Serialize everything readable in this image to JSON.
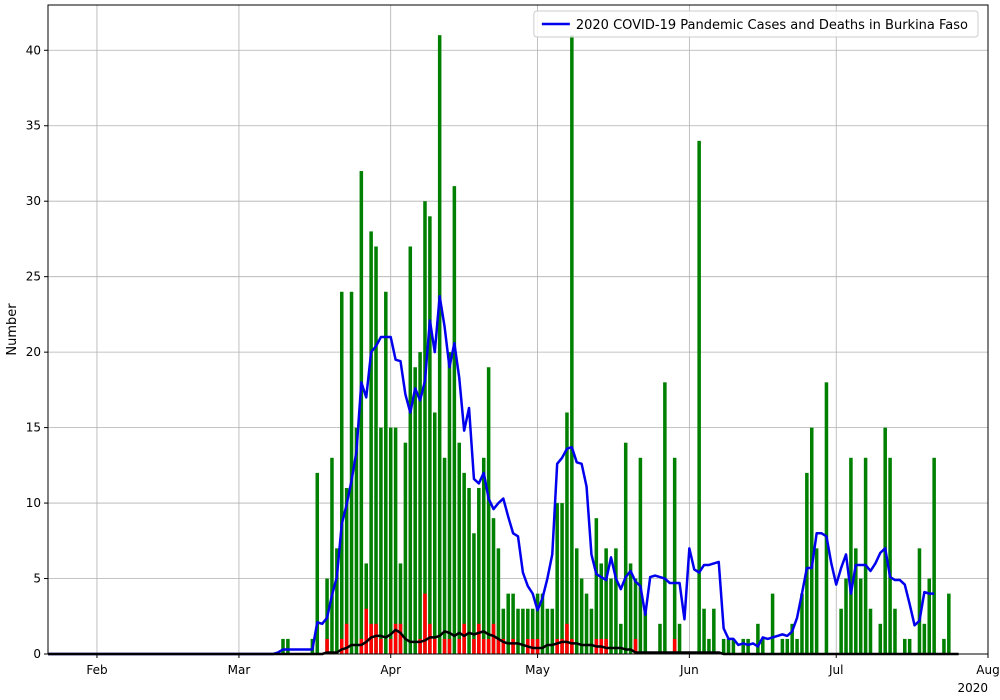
{
  "chart_data": {
    "type": "bar",
    "title": "",
    "xlabel": "",
    "ylabel": "Number",
    "x_offset_label": "2020",
    "x_range": [
      "2020-01-22",
      "2020-08-01"
    ],
    "ylim": [
      0,
      43
    ],
    "y_ticks": [
      0,
      5,
      10,
      15,
      20,
      25,
      30,
      35,
      40
    ],
    "x_ticks": [
      {
        "date": "2020-02-01",
        "label": "Feb"
      },
      {
        "date": "2020-03-01",
        "label": "Mar"
      },
      {
        "date": "2020-04-01",
        "label": "Apr"
      },
      {
        "date": "2020-05-01",
        "label": "May"
      },
      {
        "date": "2020-06-01",
        "label": "Jun"
      },
      {
        "date": "2020-07-01",
        "label": "Jul"
      },
      {
        "date": "2020-08-01",
        "label": "Aug"
      }
    ],
    "grid": true,
    "legend_position": "top-right",
    "legend_entries": [
      "2020 COVID-19 Pandemic Cases and Deaths in Burkina Faso"
    ],
    "start_date": "2020-01-22",
    "colors": {
      "cases_bar": "#008000",
      "deaths_bar": "#ff0000",
      "cases_avg": "#0000ee",
      "deaths_avg": "#000000",
      "grid": "#b0b0b0"
    },
    "series": [
      {
        "kind": "bar",
        "color": "#008000",
        "values": [
          0,
          0,
          0,
          0,
          0,
          0,
          0,
          0,
          0,
          0,
          0,
          0,
          0,
          0,
          0,
          0,
          0,
          0,
          0,
          0,
          0,
          0,
          0,
          0,
          0,
          0,
          0,
          0,
          0,
          0,
          0,
          0,
          0,
          0,
          0,
          0,
          0,
          0,
          0,
          0,
          0,
          0,
          0,
          0,
          0,
          0,
          0,
          0,
          1,
          1,
          0,
          0,
          0,
          0,
          1,
          12,
          0,
          5,
          13,
          7,
          24,
          11,
          24,
          15,
          32,
          6,
          28,
          27,
          15,
          24,
          15,
          15,
          6,
          14,
          27,
          19,
          20,
          30,
          29,
          16,
          41,
          13,
          20,
          31,
          14,
          12,
          11,
          8,
          11,
          13,
          19,
          9,
          7,
          3,
          4,
          4,
          3,
          3,
          3,
          3,
          4,
          4,
          3,
          3,
          10,
          10,
          16,
          41,
          7,
          5,
          4,
          3,
          9,
          6,
          7,
          5,
          7,
          2,
          14,
          6,
          5,
          13,
          3,
          0,
          0,
          2,
          18,
          0,
          13,
          2,
          0,
          0,
          0,
          34,
          3,
          1,
          3,
          0,
          1,
          1,
          1,
          0,
          1,
          1,
          0,
          2,
          1,
          0,
          4,
          0,
          1,
          1,
          2,
          1,
          4,
          12,
          15,
          7,
          0,
          18,
          0,
          0,
          3,
          5,
          13,
          7,
          5,
          13,
          3,
          0,
          2,
          15,
          13,
          3,
          0,
          1,
          1,
          0,
          7,
          2,
          5,
          13,
          0,
          1,
          4
        ]
      },
      {
        "kind": "bar",
        "color": "#ff0000",
        "values": [
          0,
          0,
          0,
          0,
          0,
          0,
          0,
          0,
          0,
          0,
          0,
          0,
          0,
          0,
          0,
          0,
          0,
          0,
          0,
          0,
          0,
          0,
          0,
          0,
          0,
          0,
          0,
          0,
          0,
          0,
          0,
          0,
          0,
          0,
          0,
          0,
          0,
          0,
          0,
          0,
          0,
          0,
          0,
          0,
          0,
          0,
          0,
          0,
          0,
          0,
          0,
          0,
          0,
          0,
          0,
          0,
          0,
          1,
          0,
          0,
          1,
          2,
          0,
          0,
          1,
          3,
          2,
          2,
          1,
          0,
          1,
          2,
          2,
          0,
          0,
          0,
          1,
          4,
          2,
          1,
          0,
          1,
          1,
          0,
          1,
          2,
          0,
          1,
          2,
          1,
          1,
          2,
          1,
          1,
          0,
          1,
          0,
          0,
          1,
          1,
          1,
          0,
          0,
          0,
          1,
          1,
          2,
          1,
          0,
          0,
          0,
          0,
          1,
          1,
          1,
          0,
          0,
          0,
          0,
          0,
          1,
          0,
          0,
          0,
          0,
          0,
          0,
          0,
          1,
          0,
          0,
          0,
          0,
          0,
          0,
          0,
          0,
          0,
          0,
          0,
          0,
          0,
          0,
          0,
          0,
          0,
          0,
          0,
          0,
          0,
          0,
          0,
          0,
          0,
          0,
          0,
          0,
          0,
          0,
          0,
          0,
          0,
          0,
          0,
          0,
          0,
          0,
          0,
          0,
          0,
          0,
          0,
          0,
          0,
          0,
          0,
          0,
          0,
          0,
          0,
          0,
          0,
          0
        ]
      },
      {
        "kind": "line",
        "color": "#0000ee",
        "values": [
          0,
          0,
          0,
          0,
          0,
          0,
          0,
          0,
          0,
          0,
          0,
          0,
          0,
          0,
          0,
          0,
          0,
          0,
          0,
          0,
          0,
          0,
          0,
          0,
          0,
          0,
          0,
          0,
          0,
          0,
          0,
          0,
          0,
          0,
          0,
          0,
          0,
          0,
          0,
          0,
          0,
          0,
          0,
          0,
          0,
          0,
          0,
          0.1,
          0.3,
          0.3,
          0.3,
          0.3,
          0.3,
          0.3,
          0.3,
          2.1,
          2.0,
          2.4,
          3.9,
          5.1,
          8.6,
          9.9,
          11.5,
          13.4,
          18.0,
          17.0,
          20.0,
          20.4,
          21.0,
          21.0,
          21.0,
          19.5,
          19.4,
          17.2,
          16.0,
          17.6,
          16.8,
          18.1,
          22.1,
          20.0,
          23.7,
          21.7,
          19.0,
          20.6,
          18.3,
          14.8,
          16.3,
          11.6,
          11.3,
          12.0,
          10.3,
          9.6,
          10.0,
          10.3,
          9.1,
          8.0,
          7.8,
          5.4,
          4.5,
          4.0,
          2.9,
          3.7,
          5.0,
          6.6,
          12.6,
          13.0,
          13.6,
          13.7,
          12.7,
          12.6,
          11.1,
          6.6,
          5.3,
          5.1,
          4.9,
          6.4,
          5.0,
          4.3,
          5.1,
          5.5,
          4.8,
          4.5,
          2.6,
          5.1,
          5.2,
          5.1,
          5.0,
          4.7,
          4.7,
          4.7,
          2.3,
          7.0,
          5.6,
          5.4,
          5.9,
          5.9,
          6.0,
          6.1,
          1.7,
          1.0,
          1.0,
          0.6,
          0.7,
          0.6,
          0.7,
          0.5,
          1.1,
          1.0,
          1.1,
          1.2,
          1.3,
          1.2,
          1.5,
          2.4,
          4.0,
          5.7,
          5.7,
          8.0,
          8.0,
          7.8,
          6.0,
          4.6,
          5.7,
          6.6,
          4.0,
          5.9,
          5.9,
          5.9,
          5.5,
          6.0,
          6.7,
          7.0,
          5.1,
          4.9,
          4.9,
          4.6,
          3.3,
          1.9,
          2.2,
          4.1,
          4.0,
          4.0
        ]
      },
      {
        "kind": "line",
        "color": "#000000",
        "values": [
          0,
          0,
          0,
          0,
          0,
          0,
          0,
          0,
          0,
          0,
          0,
          0,
          0,
          0,
          0,
          0,
          0,
          0,
          0,
          0,
          0,
          0,
          0,
          0,
          0,
          0,
          0,
          0,
          0,
          0,
          0,
          0,
          0,
          0,
          0,
          0,
          0,
          0,
          0,
          0,
          0,
          0,
          0,
          0,
          0,
          0,
          0,
          0,
          0,
          0,
          0,
          0,
          0,
          0,
          0,
          0,
          0,
          0.1,
          0.1,
          0.1,
          0.3,
          0.4,
          0.6,
          0.6,
          0.6,
          0.8,
          1.1,
          1.2,
          1.2,
          1.1,
          1.3,
          1.6,
          1.4,
          1.0,
          0.8,
          0.8,
          0.8,
          0.9,
          1.1,
          1.1,
          1.2,
          1.5,
          1.4,
          1.2,
          1.4,
          1.2,
          1.4,
          1.3,
          1.4,
          1.5,
          1.3,
          1.2,
          1.0,
          0.8,
          0.7,
          0.7,
          0.7,
          0.6,
          0.5,
          0.4,
          0.4,
          0.4,
          0.6,
          0.6,
          0.7,
          0.8,
          0.8,
          0.7,
          0.7,
          0.6,
          0.6,
          0.6,
          0.5,
          0.5,
          0.4,
          0.4,
          0.4,
          0.4,
          0.3,
          0.3,
          0.1,
          0.1,
          0.1,
          0.1,
          0.1,
          0.1,
          0.1,
          0.1,
          0.1,
          0.1,
          0.1,
          0.1,
          0.1,
          0.1,
          0.1,
          0.1,
          0.1,
          0.1,
          0,
          0,
          0,
          0,
          0,
          0,
          0,
          0,
          0,
          0,
          0,
          0,
          0,
          0,
          0,
          0,
          0,
          0,
          0,
          0,
          0,
          0,
          0,
          0,
          0,
          0,
          0,
          0,
          0,
          0,
          0,
          0,
          0,
          0,
          0,
          0,
          0,
          0,
          0,
          0,
          0,
          0,
          0,
          0,
          0,
          0,
          0,
          0,
          0
        ]
      }
    ]
  }
}
